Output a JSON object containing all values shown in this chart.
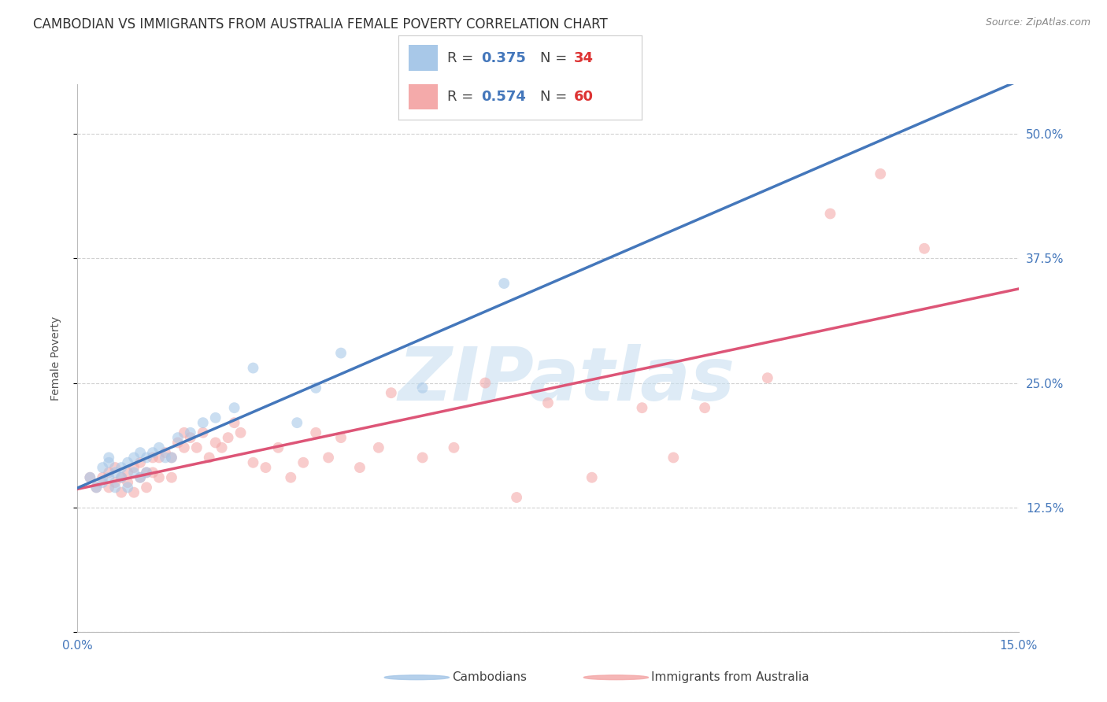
{
  "title": "CAMBODIAN VS IMMIGRANTS FROM AUSTRALIA FEMALE POVERTY CORRELATION CHART",
  "source": "Source: ZipAtlas.com",
  "ylabel_label": "Female Poverty",
  "x_min": 0.0,
  "x_max": 0.15,
  "y_min": 0.0,
  "y_max": 0.55,
  "x_ticks": [
    0.0,
    0.05,
    0.1,
    0.15
  ],
  "x_tick_labels": [
    "0.0%",
    "",
    "",
    "15.0%"
  ],
  "y_ticks": [
    0.0,
    0.125,
    0.25,
    0.375,
    0.5
  ],
  "y_tick_labels_right": [
    "",
    "12.5%",
    "25.0%",
    "37.5%",
    "50.0%"
  ],
  "cambodian_R": 0.375,
  "cambodian_N": 34,
  "australia_R": 0.574,
  "australia_N": 60,
  "cambodian_color": "#a8c8e8",
  "australia_color": "#f4aaaa",
  "trend_cambodian_color": "#4477bb",
  "trend_australia_color": "#dd5577",
  "background_color": "#ffffff",
  "grid_color": "#cccccc",
  "tick_color": "#4477bb",
  "cambodian_scatter_x": [
    0.002,
    0.003,
    0.004,
    0.004,
    0.005,
    0.005,
    0.005,
    0.006,
    0.006,
    0.007,
    0.007,
    0.008,
    0.008,
    0.009,
    0.009,
    0.01,
    0.01,
    0.011,
    0.011,
    0.012,
    0.013,
    0.014,
    0.015,
    0.016,
    0.018,
    0.02,
    0.022,
    0.025,
    0.028,
    0.035,
    0.038,
    0.042,
    0.055,
    0.068
  ],
  "cambodian_scatter_y": [
    0.155,
    0.145,
    0.165,
    0.15,
    0.17,
    0.155,
    0.175,
    0.16,
    0.145,
    0.165,
    0.155,
    0.17,
    0.145,
    0.175,
    0.16,
    0.18,
    0.155,
    0.175,
    0.16,
    0.18,
    0.185,
    0.175,
    0.175,
    0.195,
    0.2,
    0.21,
    0.215,
    0.225,
    0.265,
    0.21,
    0.245,
    0.28,
    0.245,
    0.35
  ],
  "australia_scatter_x": [
    0.002,
    0.003,
    0.004,
    0.005,
    0.005,
    0.006,
    0.006,
    0.007,
    0.007,
    0.008,
    0.008,
    0.009,
    0.009,
    0.01,
    0.01,
    0.011,
    0.011,
    0.012,
    0.012,
    0.013,
    0.013,
    0.014,
    0.015,
    0.015,
    0.016,
    0.017,
    0.017,
    0.018,
    0.019,
    0.02,
    0.021,
    0.022,
    0.023,
    0.024,
    0.025,
    0.026,
    0.028,
    0.03,
    0.032,
    0.034,
    0.036,
    0.038,
    0.04,
    0.042,
    0.045,
    0.048,
    0.05,
    0.055,
    0.06,
    0.065,
    0.07,
    0.075,
    0.082,
    0.09,
    0.095,
    0.1,
    0.11,
    0.12,
    0.128,
    0.135
  ],
  "australia_scatter_y": [
    0.155,
    0.145,
    0.155,
    0.16,
    0.145,
    0.15,
    0.165,
    0.155,
    0.14,
    0.16,
    0.15,
    0.165,
    0.14,
    0.155,
    0.17,
    0.16,
    0.145,
    0.175,
    0.16,
    0.175,
    0.155,
    0.18,
    0.175,
    0.155,
    0.19,
    0.185,
    0.2,
    0.195,
    0.185,
    0.2,
    0.175,
    0.19,
    0.185,
    0.195,
    0.21,
    0.2,
    0.17,
    0.165,
    0.185,
    0.155,
    0.17,
    0.2,
    0.175,
    0.195,
    0.165,
    0.185,
    0.24,
    0.175,
    0.185,
    0.25,
    0.135,
    0.23,
    0.155,
    0.225,
    0.175,
    0.225,
    0.255,
    0.42,
    0.46,
    0.385
  ],
  "marker_size": 100,
  "alpha": 0.6,
  "title_fontsize": 12,
  "axis_label_fontsize": 10,
  "tick_fontsize": 11,
  "legend_fontsize": 13,
  "watermark_text": "ZIPatlas",
  "watermark_color": "#c8dff0",
  "watermark_alpha": 0.6
}
